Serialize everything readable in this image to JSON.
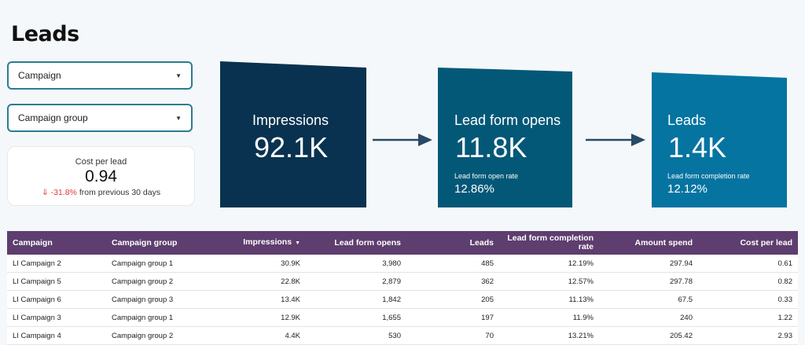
{
  "page": {
    "title": "Leads"
  },
  "filters": {
    "campaign": {
      "label": "Campaign"
    },
    "campaign_group": {
      "label": "Campaign group"
    }
  },
  "kpi": {
    "label": "Cost per lead",
    "value": "0.94",
    "delta": "-31.8%",
    "delta_suffix": "from previous 30 days",
    "delta_arrow": "⇓",
    "negative_color": "#e53935"
  },
  "funnel": {
    "stages": [
      {
        "title": "Impressions",
        "value": "92.1K",
        "color": "#08324f"
      },
      {
        "title": "Lead form opens",
        "value": "11.8K",
        "sub_label": "Lead form open rate",
        "sub_value": "12.86%",
        "color": "#045877"
      },
      {
        "title": "Leads",
        "value": "1.4K",
        "sub_label": "Lead form completion rate",
        "sub_value": "12.12%",
        "color": "#0674a0"
      }
    ],
    "arrow_color": "#274a66"
  },
  "table": {
    "header_color": "#5e3d6f",
    "columns": [
      "Campaign",
      "Campaign group",
      "Impressions",
      "Lead form opens",
      "Leads",
      "Lead form completion rate",
      "Amount spend",
      "Cost per lead"
    ],
    "sorted_column_icon": "sort-desc-icon",
    "rows": [
      [
        "LI Campaign 2",
        "Campaign group 1",
        "30.9K",
        "3,980",
        "485",
        "12.19%",
        "297.94",
        "0.61"
      ],
      [
        "LI Campaign 5",
        "Campaign group 2",
        "22.8K",
        "2,879",
        "362",
        "12.57%",
        "297.78",
        "0.82"
      ],
      [
        "LI Campaign 6",
        "Campaign group 3",
        "13.4K",
        "1,842",
        "205",
        "11.13%",
        "67.5",
        "0.33"
      ],
      [
        "LI Campaign 3",
        "Campaign group 1",
        "12.9K",
        "1,655",
        "197",
        "11.9%",
        "240",
        "1.22"
      ],
      [
        "LI Campaign 4",
        "Campaign group 2",
        "4.4K",
        "530",
        "70",
        "13.21%",
        "205.42",
        "2.93"
      ]
    ]
  }
}
